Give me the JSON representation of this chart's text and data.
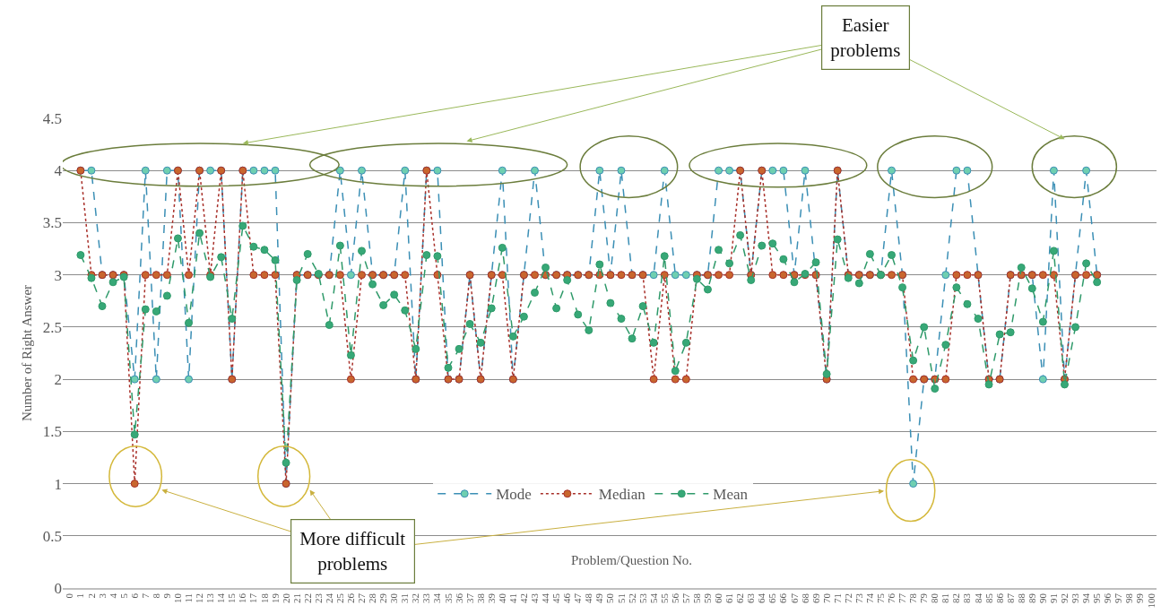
{
  "chart_data": {
    "type": "line",
    "xlabel": "Problem/Question No.",
    "ylabel": "Number of Right Answer",
    "categories": [
      "0",
      "1",
      "2",
      "3",
      "4",
      "5",
      "6",
      "7",
      "8",
      "9",
      "10",
      "11",
      "12",
      "13",
      "14",
      "15",
      "16",
      "17",
      "18",
      "19",
      "20",
      "21",
      "22",
      "23",
      "24",
      "25",
      "26",
      "27",
      "28",
      "29",
      "30",
      "31",
      "32",
      "33",
      "34",
      "35",
      "36",
      "37",
      "38",
      "39",
      "40",
      "41",
      "42",
      "43",
      "44",
      "45",
      "46",
      "47",
      "48",
      "49",
      "50",
      "51",
      "52",
      "53",
      "54",
      "55",
      "56",
      "57",
      "58",
      "59",
      "60",
      "61",
      "62",
      "63",
      "64",
      "65",
      "66",
      "67",
      "68",
      "69",
      "70",
      "71",
      "72",
      "73",
      "74",
      "75",
      "76",
      "77",
      "78",
      "79",
      "80",
      "81",
      "82",
      "83",
      "84",
      "85",
      "86",
      "87",
      "88",
      "89",
      "90",
      "91",
      "92",
      "93",
      "94",
      "95",
      "96",
      "97",
      "98",
      "99",
      "100"
    ],
    "series": [
      {
        "name": "Mode",
        "color": "#3b8fb5",
        "line_style": "dashed",
        "values": [
          null,
          4,
          4,
          3,
          3,
          3,
          2,
          4,
          2,
          4,
          4,
          2,
          4,
          4,
          4,
          2,
          4,
          4,
          4,
          4,
          1,
          3,
          3,
          3,
          3,
          4,
          3,
          4,
          3,
          3,
          3,
          4,
          2,
          4,
          4,
          2,
          2,
          3,
          2,
          3,
          4,
          2,
          3,
          4,
          3,
          3,
          3,
          3,
          3,
          4,
          3,
          4,
          3,
          3,
          3,
          4,
          3,
          3,
          3,
          3,
          4,
          4,
          4,
          3,
          4,
          4,
          4,
          3,
          4,
          3,
          2,
          4,
          3,
          3,
          3,
          3,
          4,
          3,
          1,
          2,
          2,
          3,
          4,
          4,
          3,
          2,
          2,
          3,
          3,
          3,
          2,
          4,
          2,
          3,
          4,
          3,
          null,
          null,
          null,
          null,
          null
        ]
      },
      {
        "name": "Median",
        "color": "#a8302a",
        "line_style": "dotted",
        "values": [
          null,
          4,
          3,
          3,
          3,
          3,
          1,
          3,
          3,
          3,
          4,
          3,
          4,
          3,
          4,
          2,
          4,
          3,
          3,
          3,
          1,
          3,
          3,
          3,
          3,
          3,
          2,
          3,
          3,
          3,
          3,
          3,
          2,
          4,
          3,
          2,
          2,
          3,
          2,
          3,
          3,
          2,
          3,
          3,
          3,
          3,
          3,
          3,
          3,
          3,
          3,
          3,
          3,
          3,
          2,
          3,
          2,
          2,
          3,
          3,
          3,
          3,
          4,
          3,
          4,
          3,
          3,
          3,
          3,
          3,
          2,
          4,
          3,
          3,
          3,
          3,
          3,
          3,
          2,
          2,
          2,
          2,
          3,
          3,
          3,
          2,
          2,
          3,
          3,
          3,
          3,
          3,
          2,
          3,
          3,
          3,
          null,
          null,
          null,
          null,
          null
        ]
      },
      {
        "name": "Mean",
        "color": "#2f9a6a",
        "line_style": "dashed",
        "values": [
          null,
          3.19,
          2.97,
          2.7,
          2.93,
          2.98,
          1.47,
          2.67,
          2.65,
          2.8,
          3.35,
          2.54,
          3.4,
          2.98,
          3.17,
          2.58,
          3.47,
          3.27,
          3.24,
          3.14,
          1.2,
          2.95,
          3.2,
          3.01,
          2.52,
          3.28,
          2.23,
          3.23,
          2.91,
          2.71,
          2.81,
          2.66,
          2.29,
          3.19,
          3.18,
          2.11,
          2.29,
          2.53,
          2.35,
          2.68,
          3.26,
          2.41,
          2.6,
          2.83,
          3.07,
          2.68,
          2.95,
          2.62,
          2.47,
          3.1,
          2.73,
          2.58,
          2.39,
          2.7,
          2.35,
          3.18,
          2.08,
          2.35,
          2.96,
          2.86,
          3.24,
          3.11,
          3.38,
          2.95,
          3.28,
          3.3,
          3.15,
          2.93,
          3.01,
          3.12,
          2.05,
          3.34,
          2.97,
          2.92,
          3.2,
          3.0,
          3.19,
          2.88,
          2.18,
          2.5,
          1.91,
          2.33,
          2.88,
          2.72,
          2.58,
          1.95,
          2.43,
          2.45,
          3.07,
          2.87,
          2.55,
          3.23,
          1.95,
          2.5,
          3.11,
          2.93,
          null,
          null,
          null,
          null,
          null
        ]
      }
    ],
    "ylim": [
      0,
      4.5
    ],
    "yticks": [
      0,
      0.5,
      1,
      1.5,
      2,
      2.5,
      3,
      3.5,
      4,
      4.5
    ],
    "grid": "y",
    "legend": "bottom",
    "marker": "circle",
    "annotations": [
      "Easier problems",
      "More difficult problems"
    ]
  }
}
